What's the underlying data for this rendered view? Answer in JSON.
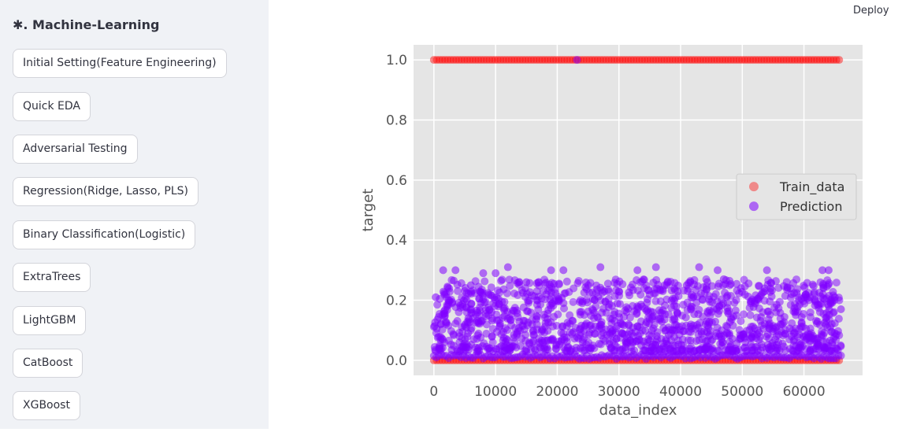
{
  "sidebar": {
    "title": "✱. Machine-Learning",
    "buttons": [
      "Initial Setting(Feature Engineering)",
      "Quick EDA",
      "Adversarial Testing",
      "Regression(Ridge, Lasso, PLS)",
      "Binary Classification(Logistic)",
      "ExtraTrees",
      "LightGBM",
      "CatBoost",
      "XGBoost"
    ]
  },
  "header": {
    "deploy_label": "Deploy"
  },
  "chart_data": {
    "type": "scatter",
    "title": "",
    "xlabel": "data_index",
    "ylabel": "target",
    "xlim": [
      -3300,
      69500
    ],
    "ylim": [
      -0.05,
      1.05
    ],
    "xticks": [
      "0",
      "10000",
      "20000",
      "30000",
      "40000",
      "50000",
      "60000"
    ],
    "yticks": [
      "0.0",
      "0.2",
      "0.4",
      "0.6",
      "0.8",
      "1.0"
    ],
    "grid": true,
    "legend_position": "center-right",
    "series": [
      {
        "name": "Train_data",
        "color": "#ff0000",
        "values_description_points": [
          [
            0,
            0
          ],
          [
            5000,
            1
          ],
          [
            10000,
            0
          ],
          [
            15000,
            1
          ],
          [
            20000,
            0
          ],
          [
            25000,
            1
          ],
          [
            30000,
            0
          ],
          [
            35000,
            1
          ],
          [
            40000,
            0
          ],
          [
            45000,
            1
          ],
          [
            50000,
            0
          ],
          [
            55000,
            1
          ],
          [
            60000,
            0
          ],
          [
            66000,
            1
          ],
          [
            66000,
            0
          ],
          [
            0,
            1
          ]
        ]
      },
      {
        "name": "Prediction",
        "color": "#7f00ff",
        "values_description_points": [
          [
            300,
            0.21
          ],
          [
            1500,
            0.3
          ],
          [
            3500,
            0.3
          ],
          [
            6000,
            0.25
          ],
          [
            8000,
            0.29
          ],
          [
            10000,
            0.29
          ],
          [
            12000,
            0.31
          ],
          [
            15000,
            0.26
          ],
          [
            19000,
            0.3
          ],
          [
            21000,
            0.3
          ],
          [
            27000,
            0.31
          ],
          [
            30000,
            0.23
          ],
          [
            33000,
            0.3
          ],
          [
            36000,
            0.31
          ],
          [
            41000,
            0.25
          ],
          [
            43000,
            0.31
          ],
          [
            46000,
            0.3
          ],
          [
            47000,
            0.27
          ],
          [
            54000,
            0.3
          ],
          [
            58000,
            0.22
          ],
          [
            63000,
            0.3
          ],
          [
            64000,
            0.3
          ],
          [
            65000,
            0.21
          ],
          [
            66000,
            0.17
          ]
        ]
      }
    ]
  }
}
